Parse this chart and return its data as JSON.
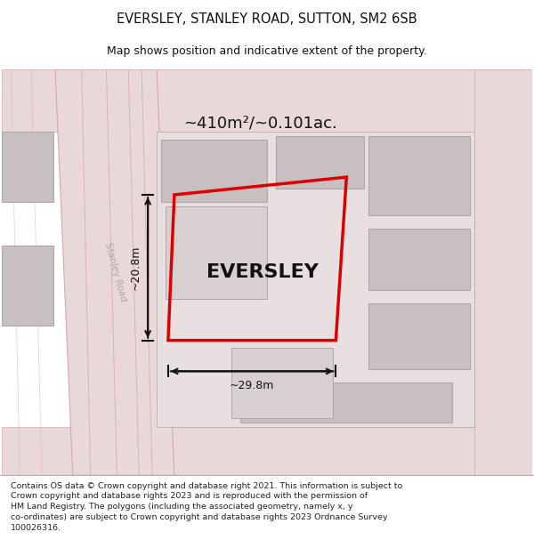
{
  "title": "EVERSLEY, STANLEY ROAD, SUTTON, SM2 6SB",
  "subtitle": "Map shows position and indicative extent of the property.",
  "property_label": "EVERSLEY",
  "area_label": "~410m²/~0.101ac.",
  "width_label": "~29.8m",
  "height_label": "~20.8m",
  "road_label": "Stanley Road",
  "footer_line1": "Contains OS data © Crown copyright and database right 2021. This information is subject to",
  "footer_line2": "Crown copyright and database rights 2023 and is reproduced with the permission of",
  "footer_line3": "HM Land Registry. The polygons (including the associated geometry, namely x, y",
  "footer_line4": "co-ordinates) are subject to Crown copyright and database rights 2023 Ordnance Survey",
  "footer_line5": "100026316.",
  "bg_white": "#ffffff",
  "map_bg": "#efe8e8",
  "road_fill": "#e8d8d8",
  "building_fill": "#c8c0c0",
  "building_edge": "#b0a8a8",
  "plot_line_color": "#dd0000",
  "road_line_color": "#d4aaaa",
  "title_color": "#111111",
  "footer_color": "#222222",
  "measure_color": "#111111"
}
